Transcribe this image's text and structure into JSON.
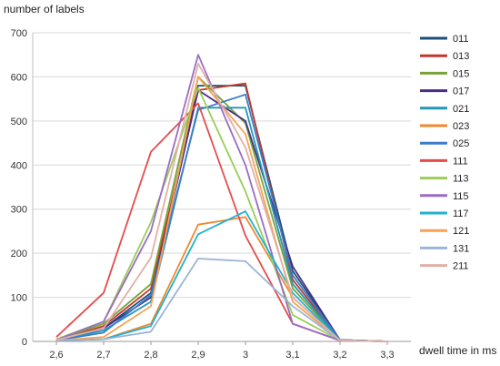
{
  "chart_data": {
    "type": "line",
    "title": "",
    "xlabel": "dwell time in ms",
    "ylabel": "number of labels",
    "x": [
      2.6,
      2.7,
      2.8,
      2.9,
      3.0,
      3.1,
      3.2,
      3.3
    ],
    "x_tick_labels": [
      "2,6",
      "2,7",
      "2,8",
      "2,9",
      "3",
      "3,1",
      "3,2",
      "3,3"
    ],
    "ylim": [
      0,
      700
    ],
    "y_ticks": [
      0,
      100,
      200,
      300,
      400,
      500,
      600,
      700
    ],
    "y_tick_labels": [
      "0",
      "100",
      "200",
      "300",
      "400",
      "500",
      "600",
      "700"
    ],
    "grid": "horizontal",
    "legend_position": "right",
    "series": [
      {
        "name": "011",
        "color": "#1f4e79",
        "values": [
          2,
          30,
          110,
          580,
          580,
          160,
          3,
          0
        ]
      },
      {
        "name": "013",
        "color": "#c0392b",
        "values": [
          2,
          35,
          120,
          570,
          585,
          140,
          3,
          0
        ]
      },
      {
        "name": "015",
        "color": "#77a33a",
        "values": [
          3,
          40,
          130,
          600,
          495,
          120,
          3,
          0
        ]
      },
      {
        "name": "017",
        "color": "#4b2e83",
        "values": [
          2,
          30,
          100,
          570,
          500,
          170,
          3,
          0
        ]
      },
      {
        "name": "021",
        "color": "#2496b8",
        "values": [
          2,
          25,
          90,
          530,
          530,
          130,
          3,
          0
        ]
      },
      {
        "name": "023",
        "color": "#f0892d",
        "values": [
          2,
          5,
          40,
          265,
          282,
          100,
          2,
          0
        ]
      },
      {
        "name": "025",
        "color": "#3a7dc9",
        "values": [
          2,
          20,
          105,
          525,
          560,
          150,
          3,
          0
        ]
      },
      {
        "name": "111",
        "color": "#e64c4c",
        "values": [
          10,
          110,
          430,
          540,
          240,
          40,
          2,
          0
        ]
      },
      {
        "name": "113",
        "color": "#9acd5a",
        "values": [
          5,
          45,
          270,
          575,
          340,
          60,
          2,
          0
        ]
      },
      {
        "name": "115",
        "color": "#9a6cc4",
        "values": [
          3,
          45,
          250,
          650,
          400,
          40,
          2,
          0
        ]
      },
      {
        "name": "117",
        "color": "#20b2d0",
        "values": [
          2,
          5,
          35,
          243,
          295,
          110,
          2,
          0
        ]
      },
      {
        "name": "121",
        "color": "#f5a355",
        "values": [
          2,
          10,
          80,
          600,
          470,
          90,
          2,
          0
        ]
      },
      {
        "name": "131",
        "color": "#9bb4d8",
        "values": [
          2,
          5,
          22,
          188,
          182,
          80,
          2,
          0
        ]
      },
      {
        "name": "211",
        "color": "#e0b0a8",
        "values": [
          3,
          30,
          190,
          630,
          440,
          100,
          2,
          0
        ]
      }
    ]
  }
}
